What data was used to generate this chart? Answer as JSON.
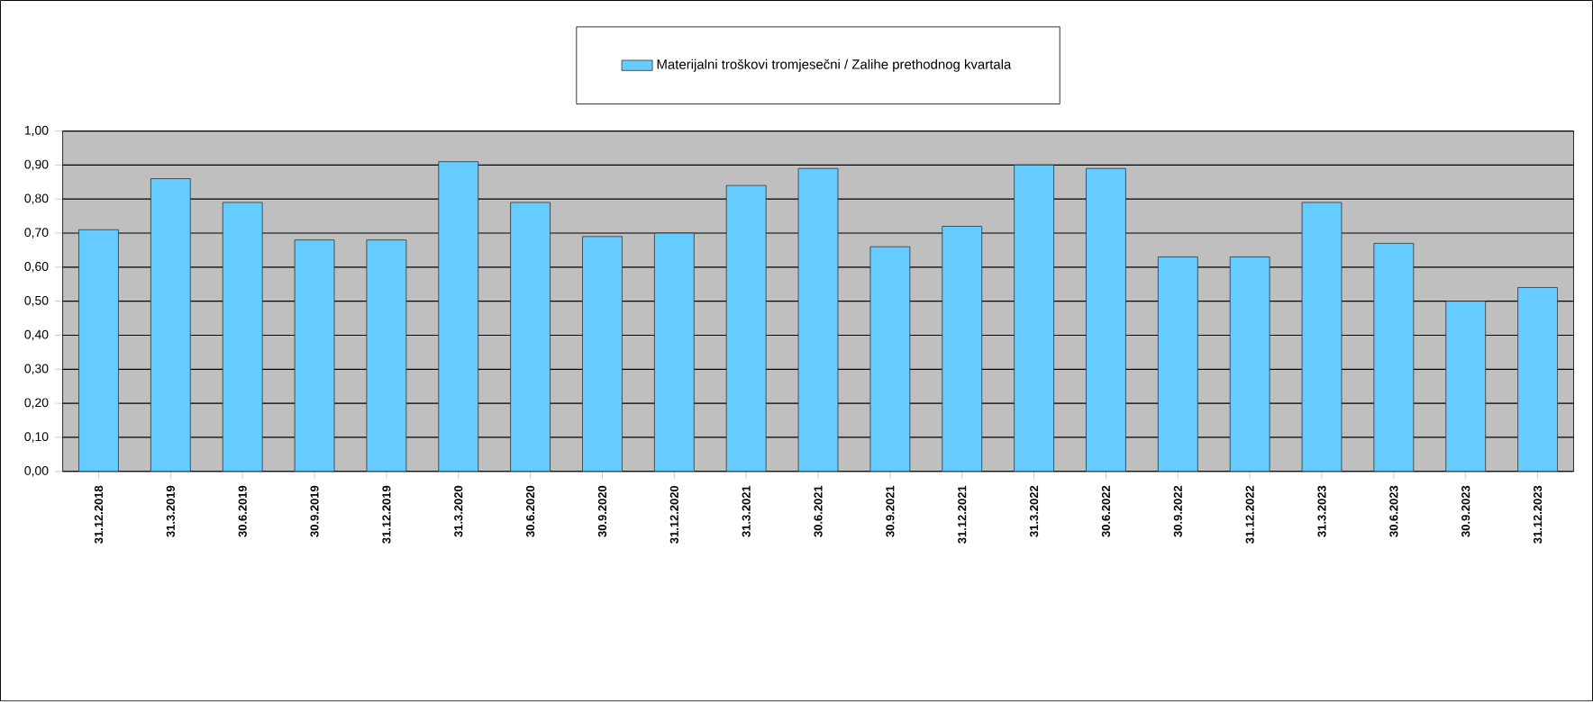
{
  "chart_data": {
    "type": "bar",
    "categories": [
      "31.12.2018",
      "31.3.2019",
      "30.6.2019",
      "30.9.2019",
      "31.12.2019",
      "31.3.2020",
      "30.6.2020",
      "30.9.2020",
      "31.12.2020",
      "31.3.2021",
      "30.6.2021",
      "30.9.2021",
      "31.12.2021",
      "31.3.2022",
      "30.6.2022",
      "30.9.2022",
      "31.12.2022",
      "31.3.2023",
      "30.6.2023",
      "30.9.2023",
      "31.12.2023"
    ],
    "series": [
      {
        "name": "Materijalni troškovi tromjesečni / Zalihe prethodnog kvartala",
        "color": "#66ccff",
        "values": [
          0.71,
          0.86,
          0.79,
          0.68,
          0.68,
          0.91,
          0.79,
          0.69,
          0.7,
          0.84,
          0.89,
          0.66,
          0.72,
          0.9,
          0.89,
          0.63,
          0.63,
          0.79,
          0.67,
          0.5,
          0.54
        ]
      }
    ],
    "ylim": [
      0,
      1
    ],
    "yticks": [
      {
        "value": 0,
        "label": "0,00"
      },
      {
        "value": 0.1,
        "label": "0,10"
      },
      {
        "value": 0.2,
        "label": "0,20"
      },
      {
        "value": 0.3,
        "label": "0,30"
      },
      {
        "value": 0.4,
        "label": "0,40"
      },
      {
        "value": 0.5,
        "label": "0,50"
      },
      {
        "value": 0.6,
        "label": "0,60"
      },
      {
        "value": 0.7,
        "label": "0,70"
      },
      {
        "value": 0.8,
        "label": "0,80"
      },
      {
        "value": 0.9,
        "label": "0,90"
      },
      {
        "value": 1.0,
        "label": "1,00"
      }
    ],
    "grid": "y",
    "legend": "top"
  }
}
